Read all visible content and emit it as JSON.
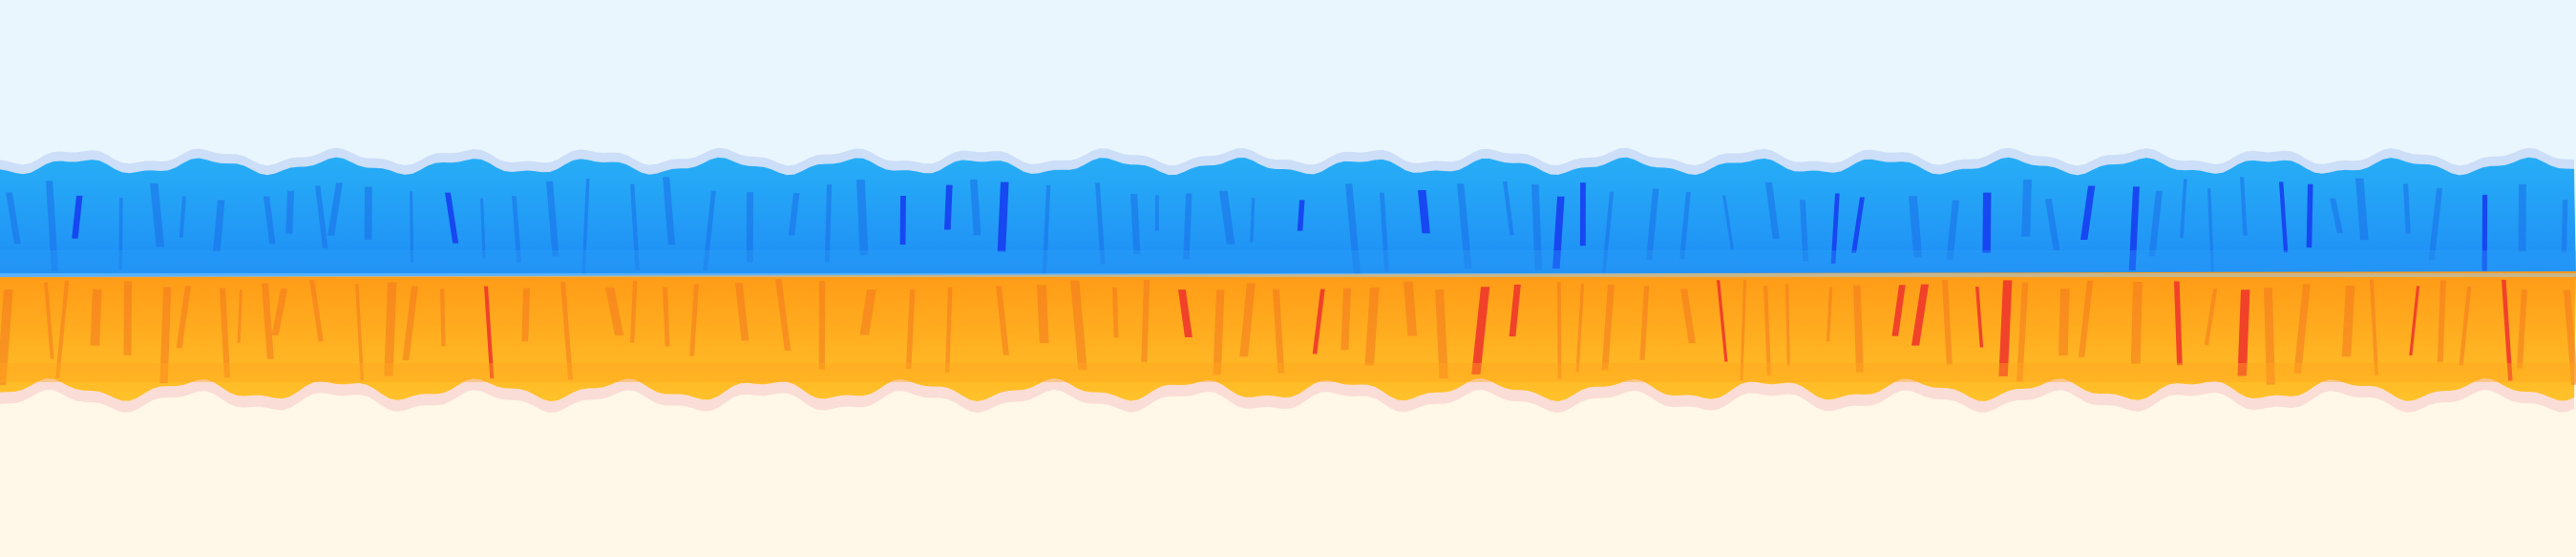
{
  "scene": {
    "kind": "tiling-texture-strip",
    "description_visible_text": "",
    "bands": [
      {
        "id": "sky",
        "color": "#EAF6FD"
      },
      {
        "id": "blue-cliff",
        "top_color": "#27AEF6",
        "bottom_color": "#1E8CF6",
        "shadow_color": "#1538F0",
        "stripe_color": "#1A6FE8",
        "rim_color": "#C9DCF7"
      },
      {
        "id": "orange-cliff",
        "top_color": "#FF9A16",
        "bottom_color": "#FFC22A",
        "shadow_color": "#F0362B",
        "stripe_color": "#F2741E",
        "rim_color": "#FAD9D4"
      },
      {
        "id": "sand",
        "color": "#FFF7E8"
      }
    ]
  }
}
